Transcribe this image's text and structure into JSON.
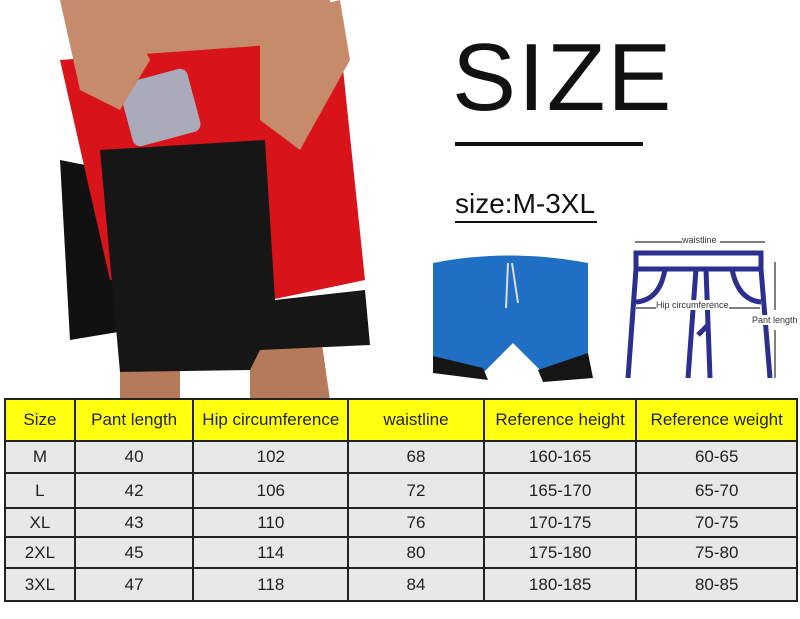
{
  "title": "SIZE",
  "size_range": "size:M-3XL",
  "diagram": {
    "waistline": "waistline",
    "hip": "Hip circumference",
    "length": "Pant length"
  },
  "colors": {
    "header": "#ffff10",
    "cell": "#e8e8e8",
    "shorts_red": "#d8141a",
    "shorts_blue": "#1f6fc4",
    "diagram": "#2b2f8f"
  },
  "table": {
    "headers": [
      "Size",
      "Pant length",
      "Hip circumference",
      "waistline",
      "Reference height",
      "Reference weight"
    ],
    "rows": [
      [
        "M",
        "40",
        "102",
        "68",
        "160-165",
        "60-65"
      ],
      [
        "L",
        "42",
        "106",
        "72",
        "165-170",
        "65-70"
      ],
      [
        "XL",
        "43",
        "110",
        "76",
        "170-175",
        "70-75"
      ],
      [
        "2XL",
        "45",
        "114",
        "80",
        "175-180",
        "75-80"
      ],
      [
        "3XL",
        "47",
        "118",
        "84",
        "180-185",
        "80-85"
      ]
    ]
  }
}
